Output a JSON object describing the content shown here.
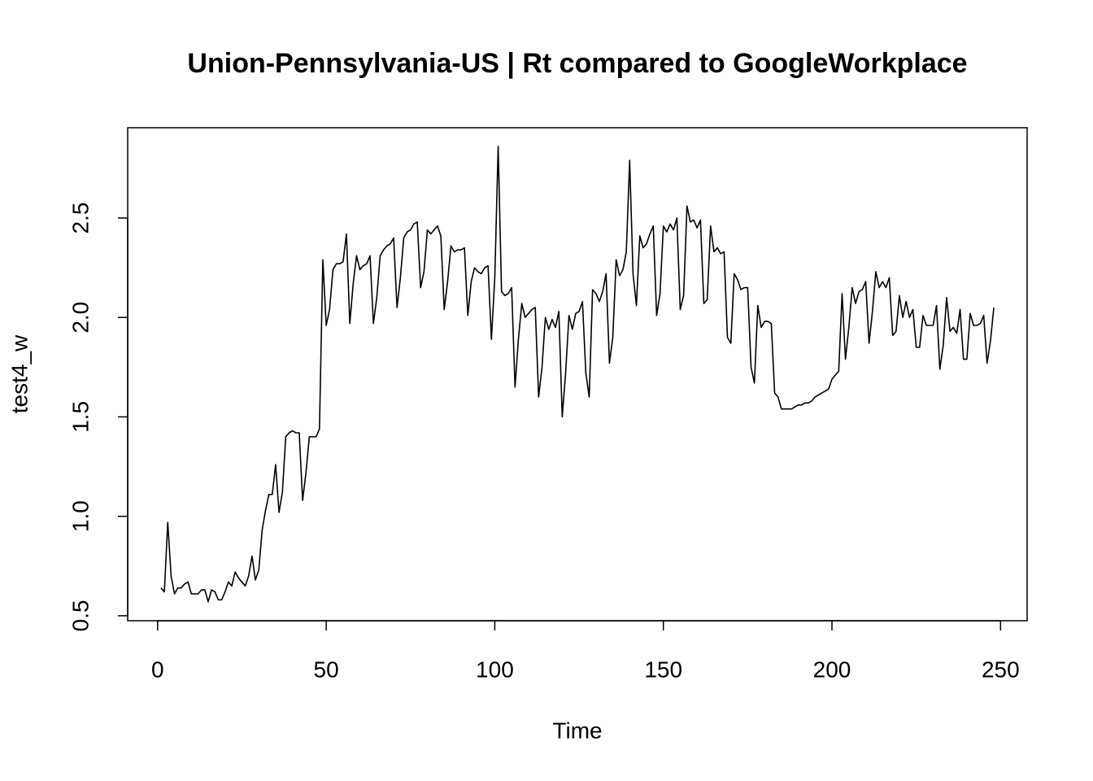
{
  "chart_data": {
    "type": "line",
    "title": "Union-Pennsylvania-US | Rt compared to GoogleWorkplace",
    "xlabel": "Time",
    "ylabel": "test4_w",
    "color": "#000000",
    "x": [
      1,
      2,
      3,
      4,
      5,
      6,
      7,
      8,
      9,
      10,
      11,
      12,
      13,
      14,
      15,
      16,
      17,
      18,
      19,
      20,
      21,
      22,
      23,
      24,
      25,
      26,
      27,
      28,
      29,
      30,
      31,
      32,
      33,
      34,
      35,
      36,
      37,
      38,
      39,
      40,
      41,
      42,
      43,
      44,
      45,
      46,
      47,
      48,
      49,
      50,
      51,
      52,
      53,
      54,
      55,
      56,
      57,
      58,
      59,
      60,
      61,
      62,
      63,
      64,
      65,
      66,
      67,
      68,
      69,
      70,
      71,
      72,
      73,
      74,
      75,
      76,
      77,
      78,
      79,
      80,
      81,
      82,
      83,
      84,
      85,
      86,
      87,
      88,
      89,
      90,
      91,
      92,
      93,
      94,
      95,
      96,
      97,
      98,
      99,
      100,
      101,
      102,
      103,
      104,
      105,
      106,
      107,
      108,
      109,
      110,
      111,
      112,
      113,
      114,
      115,
      116,
      117,
      118,
      119,
      120,
      121,
      122,
      123,
      124,
      125,
      126,
      127,
      128,
      129,
      130,
      131,
      132,
      133,
      134,
      135,
      136,
      137,
      138,
      139,
      140,
      141,
      142,
      143,
      144,
      145,
      146,
      147,
      148,
      149,
      150,
      151,
      152,
      153,
      154,
      155,
      156,
      157,
      158,
      159,
      160,
      161,
      162,
      163,
      164,
      165,
      166,
      167,
      168,
      169,
      170,
      171,
      172,
      173,
      174,
      175,
      176,
      177,
      178,
      179,
      180,
      181,
      182,
      183,
      184,
      185,
      186,
      187,
      188,
      189,
      190,
      191,
      192,
      193,
      194,
      195,
      196,
      197,
      198,
      199,
      200,
      201,
      202,
      203,
      204,
      205,
      206,
      207,
      208,
      209,
      210,
      211,
      212,
      213,
      214,
      215,
      216,
      217,
      218,
      219,
      220,
      221,
      222,
      223,
      224,
      225,
      226,
      227,
      228,
      229,
      230,
      231,
      232,
      233,
      234,
      235,
      236,
      237,
      238,
      239,
      240,
      241,
      242,
      243,
      244,
      245,
      246,
      247,
      248
    ],
    "values": [
      0.64,
      0.62,
      0.97,
      0.7,
      0.61,
      0.64,
      0.64,
      0.66,
      0.67,
      0.61,
      0.61,
      0.61,
      0.63,
      0.63,
      0.57,
      0.63,
      0.62,
      0.58,
      0.58,
      0.62,
      0.67,
      0.65,
      0.72,
      0.69,
      0.67,
      0.65,
      0.7,
      0.8,
      0.68,
      0.73,
      0.93,
      1.03,
      1.11,
      1.11,
      1.26,
      1.02,
      1.12,
      1.4,
      1.42,
      1.43,
      1.42,
      1.42,
      1.08,
      1.22,
      1.4,
      1.4,
      1.4,
      1.44,
      2.29,
      1.96,
      2.04,
      2.24,
      2.27,
      2.27,
      2.28,
      2.42,
      1.97,
      2.17,
      2.31,
      2.24,
      2.26,
      2.27,
      2.31,
      1.97,
      2.1,
      2.31,
      2.34,
      2.36,
      2.37,
      2.4,
      2.05,
      2.2,
      2.4,
      2.43,
      2.44,
      2.47,
      2.48,
      2.15,
      2.23,
      2.44,
      2.42,
      2.44,
      2.46,
      2.41,
      2.04,
      2.18,
      2.36,
      2.33,
      2.34,
      2.34,
      2.35,
      2.01,
      2.18,
      2.25,
      2.23,
      2.22,
      2.25,
      2.26,
      1.89,
      2.2,
      2.86,
      2.13,
      2.11,
      2.12,
      2.15,
      1.65,
      1.89,
      2.07,
      2.0,
      2.02,
      2.04,
      2.05,
      1.6,
      1.75,
      2.0,
      1.94,
      1.99,
      1.95,
      2.03,
      1.5,
      1.72,
      2.01,
      1.94,
      2.02,
      2.03,
      2.08,
      1.72,
      1.6,
      2.14,
      2.12,
      2.08,
      2.13,
      2.22,
      1.77,
      1.9,
      2.29,
      2.21,
      2.24,
      2.33,
      2.79,
      2.22,
      2.06,
      2.41,
      2.35,
      2.37,
      2.42,
      2.46,
      2.01,
      2.12,
      2.46,
      2.43,
      2.47,
      2.44,
      2.5,
      2.04,
      2.11,
      2.56,
      2.48,
      2.49,
      2.45,
      2.49,
      2.07,
      2.09,
      2.46,
      2.33,
      2.35,
      2.32,
      2.33,
      1.9,
      1.87,
      2.22,
      2.19,
      2.14,
      2.15,
      2.15,
      1.75,
      1.67,
      2.06,
      1.95,
      1.98,
      1.98,
      1.97,
      1.62,
      1.6,
      1.54,
      1.54,
      1.54,
      1.54,
      1.55,
      1.56,
      1.56,
      1.57,
      1.57,
      1.58,
      1.6,
      1.61,
      1.62,
      1.63,
      1.64,
      1.69,
      1.71,
      1.73,
      2.12,
      1.79,
      1.95,
      2.15,
      2.07,
      2.13,
      2.14,
      2.18,
      1.87,
      2.03,
      2.23,
      2.15,
      2.18,
      2.15,
      2.2,
      1.91,
      1.93,
      2.11,
      2.0,
      2.08,
      2.0,
      2.04,
      1.85,
      1.85,
      2.01,
      1.96,
      1.96,
      1.96,
      2.06,
      1.74,
      1.86,
      2.1,
      1.93,
      1.95,
      1.92,
      2.04,
      1.79,
      1.79,
      2.02,
      1.96,
      1.96,
      1.97,
      2.01,
      1.77,
      1.88,
      2.05
    ],
    "xlim": [
      -8.88,
      257.88
    ],
    "xticks": [
      0,
      50,
      100,
      150,
      200,
      250
    ],
    "ylim": [
      0.475,
      2.954
    ],
    "yticks": [
      0.5,
      {
        "value": 1,
        "label": "1.0"
      },
      1.5,
      {
        "value": 2,
        "label": "2.0"
      },
      2.5
    ]
  }
}
